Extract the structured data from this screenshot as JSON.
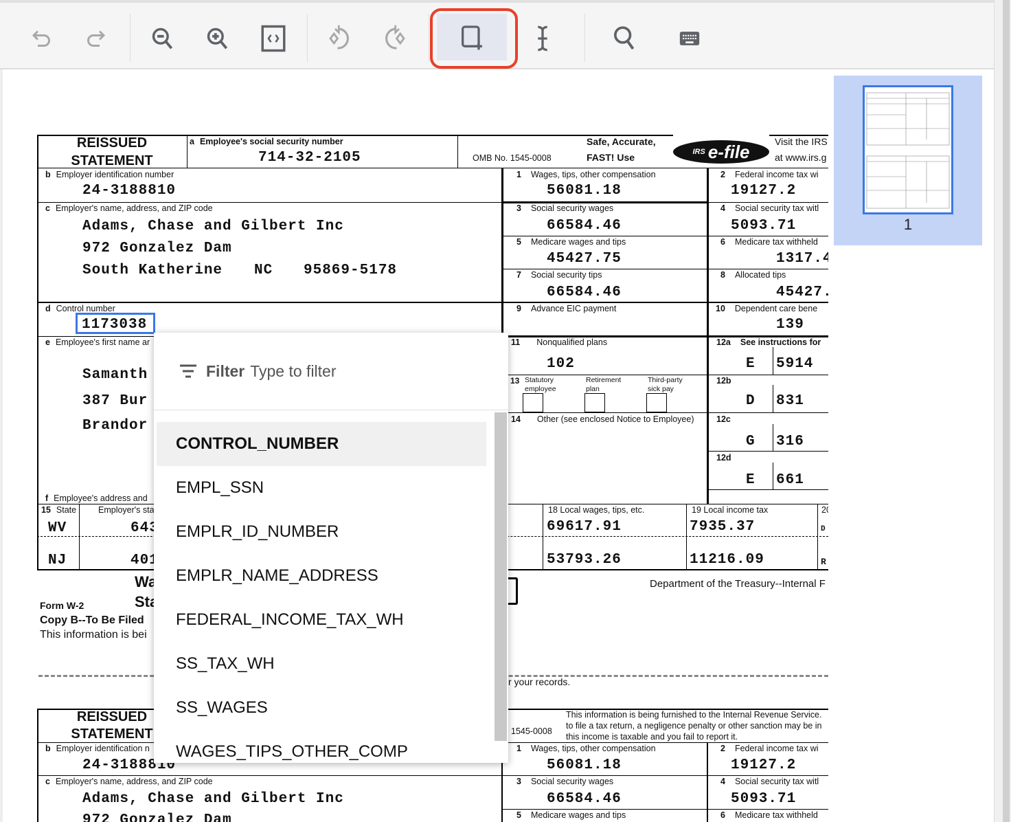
{
  "toolbar": {
    "items": [
      {
        "name": "undo",
        "enabled": false
      },
      {
        "name": "redo",
        "enabled": false
      },
      {
        "name": "zoom-out",
        "enabled": true
      },
      {
        "name": "zoom-in",
        "enabled": true
      },
      {
        "name": "fit-page",
        "enabled": true
      },
      {
        "name": "rotate-left",
        "enabled": false
      },
      {
        "name": "rotate-right",
        "enabled": false
      },
      {
        "name": "add-region",
        "enabled": true,
        "active": true
      },
      {
        "name": "text-cursor",
        "enabled": true
      },
      {
        "name": "search",
        "enabled": true
      },
      {
        "name": "keyboard",
        "enabled": true
      }
    ],
    "highlight_color": "#e8402a"
  },
  "thumbnail": {
    "page_number": "1"
  },
  "form": {
    "reissued": "REISSUED",
    "statement": "STATEMENT",
    "a_label": "a",
    "a_text": "Employee's social security number",
    "ssn": "714-32-2105",
    "omb": "OMB No. 1545-0008",
    "safe": "Safe, Accurate,",
    "fast": "FAST!  Use",
    "efile": "e-file",
    "irs": "IRS",
    "visit": "Visit the IRS",
    "visit2": "at www.irs.g",
    "b_label": "b",
    "b_text": "Employer identification number",
    "ein": "24-3188810",
    "c_label": "c",
    "c_text": "Employer's name, address, and ZIP code",
    "employer_name": "Adams, Chase and Gilbert Inc",
    "employer_street": "972 Gonzalez Dam",
    "employer_city": "South Katherine",
    "employer_state": "NC",
    "employer_zip": "95869-5178",
    "d_label": "d",
    "d_text": "Control number",
    "control": "1173038",
    "e_label": "e",
    "e_text": "Employee's first name ar",
    "employee_name": "Samanth",
    "employee_street": "387 Bur",
    "employee_city": "Brandor",
    "f_label": "f",
    "f_text": "Employee's address and",
    "b15_num": "15",
    "b15": "State",
    "b15b": "Employer's sta",
    "state1": "WV",
    "stateid1": "643",
    "state2": "NJ",
    "stateid2": "401",
    "boxes": {
      "b1": {
        "n": "1",
        "label": "Wages, tips, other compensation",
        "value": "56081.18"
      },
      "b2": {
        "n": "2",
        "label": "Federal income tax wi",
        "value": "19127.2"
      },
      "b3": {
        "n": "3",
        "label": "Social security wages",
        "value": "66584.46"
      },
      "b4": {
        "n": "4",
        "label": "Social security tax witl",
        "value": "5093.71"
      },
      "b5": {
        "n": "5",
        "label": "Medicare wages and tips",
        "value": "45427.75"
      },
      "b6": {
        "n": "6",
        "label": "Medicare tax withheld",
        "value": "1317.4"
      },
      "b7": {
        "n": "7",
        "label": "Social security tips",
        "value": "66584.46"
      },
      "b8": {
        "n": "8",
        "label": "Allocated tips",
        "value": "45427."
      },
      "b9": {
        "n": "9",
        "label": "Advance EIC payment"
      },
      "b10": {
        "n": "10",
        "label": "Dependent care bene",
        "value": "139"
      },
      "b11": {
        "n": "11",
        "label": "Nonqualified plans",
        "value": "102"
      },
      "b12a": {
        "n": "12a",
        "label": "See instructions for",
        "code": "E",
        "value": "5914"
      },
      "b12b": {
        "n": "12b",
        "code": "D",
        "value": "831"
      },
      "b12c": {
        "n": "12c",
        "code": "G",
        "value": "316"
      },
      "b12d": {
        "n": "12d",
        "code": "E",
        "value": "661"
      },
      "b13": {
        "n": "13",
        "stat": "Statutory",
        "stat2": "employee",
        "ret": "Retirement",
        "ret2": "plan",
        "third": "Third-party",
        "third2": "sick pay"
      },
      "b14": {
        "n": "14",
        "label": "Other (see enclosed Notice to Employee)"
      },
      "b18": {
        "label": "18  Local wages, tips, etc.",
        "v1": "69617.91",
        "v2": "53793.26"
      },
      "b19": {
        "label": "19  Local income tax",
        "v1": "7935.37",
        "v2": "11216.09"
      },
      "b20": {
        "label": "20",
        "v1": "D",
        "v2": "R"
      }
    },
    "wa": "Wa",
    "sta": "Sta",
    "form_w2": "Form  W-2",
    "copy_b": "Copy B--To Be Filed",
    "info_short": "This information is bei",
    "dept": "Department of the Treasury--Internal F",
    "records": "r your records.",
    "copy2": {
      "omb": "1545-0008",
      "info1": "This information is being furnished to the Internal Revenue Service.",
      "info2": "to file a tax return, a negligence penalty or other sanction may be in",
      "info3": "this income is taxable and you fail to report it.",
      "b_text": "Employer identification n",
      "street": "972 Gonzalez Dam"
    }
  },
  "popup": {
    "filter_label": "Filter",
    "filter_placeholder": "Type to filter",
    "items": [
      "CONTROL_NUMBER",
      "EMPL_SSN",
      "EMPLR_ID_NUMBER",
      "EMPLR_NAME_ADDRESS",
      "FEDERAL_INCOME_TAX_WH",
      "SS_TAX_WH",
      "SS_WAGES",
      "WAGES_TIPS_OTHER_COMP"
    ]
  }
}
